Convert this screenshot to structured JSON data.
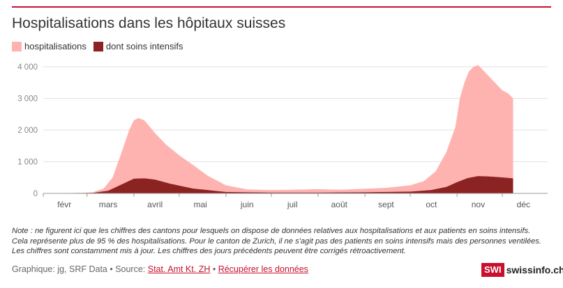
{
  "chart_data": {
    "type": "area",
    "title": "Hospitalisations dans les hôpitaux suisses",
    "xlabel": "",
    "ylabel": "",
    "ylim": [
      0,
      4000
    ],
    "yticks": [
      0,
      1000,
      2000,
      3000,
      4000
    ],
    "ytick_labels": [
      "0",
      "1 000",
      "2 000",
      "3 000",
      "4 000"
    ],
    "months": [
      "févr",
      "mars",
      "avril",
      "mai",
      "juin",
      "juil",
      "août",
      "sept",
      "oct",
      "nov",
      "déc"
    ],
    "grid": true,
    "legend_position": "top-left",
    "series": [
      {
        "name": "hospitalisations",
        "color": "#ffb3b1",
        "x": [
          "2020-02-01",
          "2020-02-25",
          "2020-03-05",
          "2020-03-12",
          "2020-03-18",
          "2020-03-24",
          "2020-03-29",
          "2020-04-01",
          "2020-04-04",
          "2020-04-08",
          "2020-04-15",
          "2020-04-22",
          "2020-05-01",
          "2020-05-10",
          "2020-05-20",
          "2020-06-01",
          "2020-06-15",
          "2020-07-01",
          "2020-07-15",
          "2020-08-01",
          "2020-08-15",
          "2020-09-01",
          "2020-09-15",
          "2020-10-01",
          "2020-10-10",
          "2020-10-18",
          "2020-10-25",
          "2020-10-31",
          "2020-11-03",
          "2020-11-06",
          "2020-11-09",
          "2020-11-12",
          "2020-11-15",
          "2020-11-18",
          "2020-11-22",
          "2020-11-26",
          "2020-12-01",
          "2020-12-05",
          "2020-12-08"
        ],
        "values": [
          0,
          0,
          30,
          150,
          500,
          1300,
          2000,
          2300,
          2380,
          2300,
          1900,
          1550,
          1200,
          900,
          550,
          250,
          120,
          100,
          110,
          130,
          110,
          140,
          170,
          250,
          380,
          700,
          1300,
          2100,
          3000,
          3500,
          3850,
          4000,
          4050,
          3900,
          3700,
          3500,
          3250,
          3150,
          3000
        ]
      },
      {
        "name": "dont soins intensifs",
        "color": "#8c2323",
        "x": [
          "2020-02-01",
          "2020-03-05",
          "2020-03-15",
          "2020-03-25",
          "2020-04-01",
          "2020-04-08",
          "2020-04-15",
          "2020-04-25",
          "2020-05-10",
          "2020-06-01",
          "2020-07-01",
          "2020-08-01",
          "2020-09-01",
          "2020-10-01",
          "2020-10-15",
          "2020-10-25",
          "2020-11-01",
          "2020-11-08",
          "2020-11-15",
          "2020-11-22",
          "2020-12-01",
          "2020-12-08"
        ],
        "values": [
          0,
          10,
          80,
          300,
          460,
          470,
          430,
          300,
          150,
          40,
          20,
          20,
          30,
          50,
          100,
          200,
          350,
          480,
          540,
          530,
          500,
          470
        ]
      }
    ]
  },
  "legend": {
    "item1": "hospitalisations",
    "item2": "dont soins intensifs"
  },
  "note": "Note : ne figurent ici que les chiffres des cantons pour lesquels on dispose de données relatives aux hospitalisations et aux patients en soins intensifs. Cela représente plus de 95 % des hospitalisations. Pour le canton de Zurich, il ne s'agit pas des patients en soins intensifs mais des personnes ventilées. Les chiffres sont constamment mis à jour. Les chiffres des jours précédents peuvent être corrigés rétroactivement.",
  "footer": {
    "prefix": "Graphique: jg, SRF Data • Source: ",
    "source_link": "Stat. Amt Kt. ZH",
    "separator": " • ",
    "data_link": "Récupérer les données"
  },
  "logo": {
    "box": "SWI",
    "text": "swissinfo.ch",
    "color": "#c8102e"
  }
}
